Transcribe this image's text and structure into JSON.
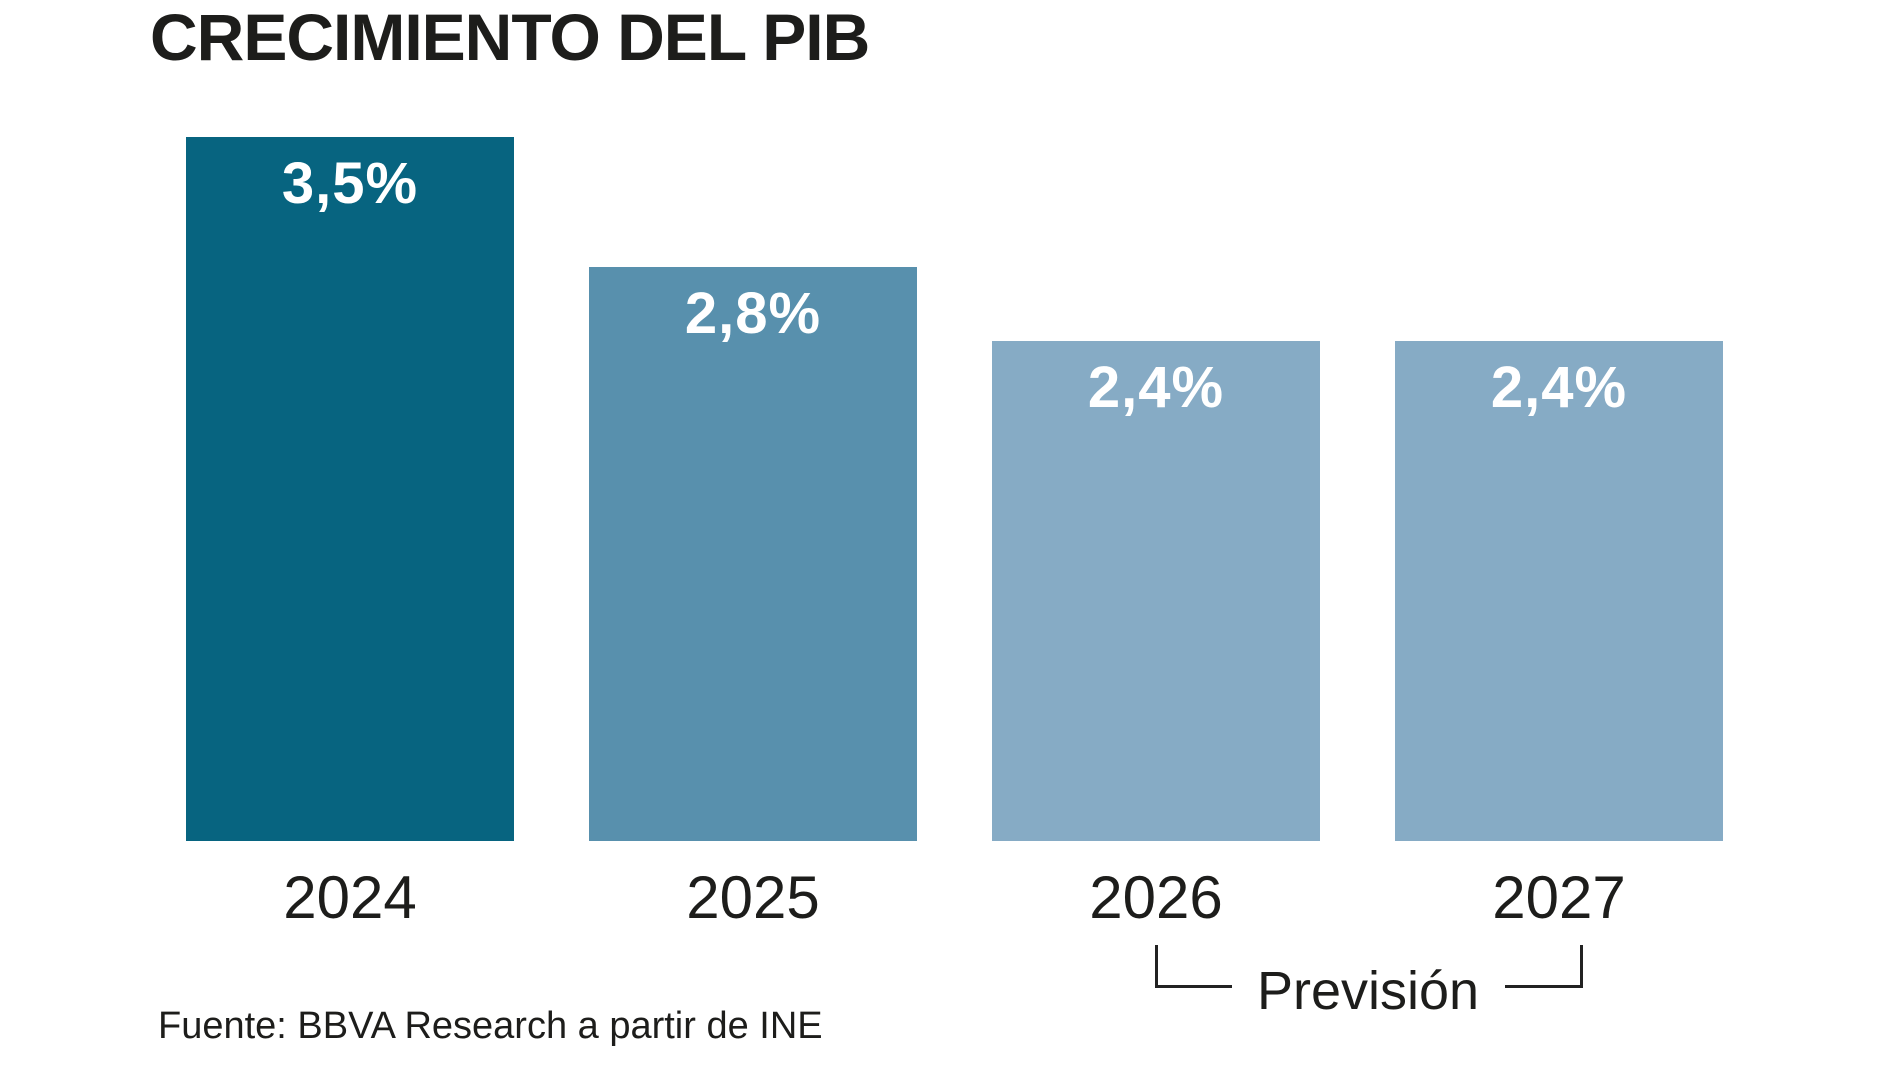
{
  "chart_data": {
    "type": "bar",
    "title": "CRECIMIENTO DEL PIB",
    "categories": [
      "2024",
      "2025",
      "2026",
      "2027"
    ],
    "values": [
      3.5,
      2.8,
      2.4,
      2.4
    ],
    "value_labels": [
      "3,5%",
      "2,8%",
      "2,4%",
      "2,4%"
    ],
    "bar_colors": [
      "#076480",
      "#5890AD",
      "#86ABC5",
      "#86ABC5"
    ],
    "xlabel": "",
    "ylabel": "",
    "ylim": [
      0,
      3.5
    ],
    "grid": false,
    "legend_position": "none",
    "annotation": {
      "label": "Previsión",
      "applies_to": [
        "2026",
        "2027"
      ]
    },
    "source": "Fuente: BBVA Research a partir de INE",
    "text_color": "#1d1d1b",
    "background_color": "#ffffff"
  }
}
